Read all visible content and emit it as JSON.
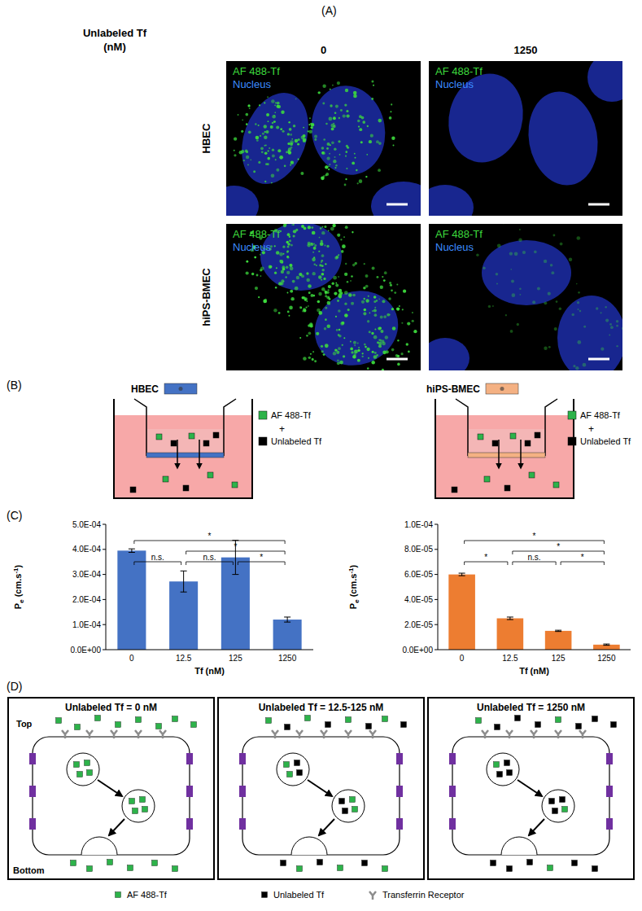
{
  "panel_a": {
    "label": "(A)",
    "header": [
      "Unlabeled Tf",
      "(nM)"
    ],
    "columns": [
      "0",
      "1250"
    ],
    "rows": [
      "HBEC",
      "hiPS-BMEC"
    ],
    "channels": [
      {
        "name": "AF 488-Tf",
        "color": "#3ddc3d"
      },
      {
        "name": "Nucleus",
        "color": "#3c8cff"
      }
    ]
  },
  "panel_b": {
    "label": "(B)",
    "setups": [
      {
        "cell": "HBEC",
        "color": "#4472c4"
      },
      {
        "cell": "hiPS-BMEC",
        "color": "#f4b183"
      }
    ],
    "legend": [
      {
        "name": "AF 488-Tf",
        "color": "#2db34a"
      },
      {
        "name": "Unlabeled Tf",
        "color": "#000000"
      }
    ],
    "plus": "+"
  },
  "panel_c_label": "(C)",
  "chart_data": [
    {
      "type": "bar",
      "categories": [
        "0",
        "12.5",
        "125",
        "1250"
      ],
      "values": [
        0.000395,
        0.000272,
        0.000368,
        0.00012
      ],
      "errors": [
        7e-06,
        4.2e-05,
        6.8e-05,
        1e-05
      ],
      "color": "#4472c4",
      "ylim": [
        0,
        0.0005
      ],
      "yticks": [
        {
          "value": 0,
          "label": "0.0E+00"
        },
        {
          "value": 0.0001,
          "label": "1.0E-04"
        },
        {
          "value": 0.0002,
          "label": "2.0E-04"
        },
        {
          "value": 0.0003,
          "label": "3.0E-04"
        },
        {
          "value": 0.0004,
          "label": "4.0E-04"
        },
        {
          "value": 0.0005,
          "label": "5.0E-04"
        }
      ],
      "x_label": "Tf (nM)",
      "y_label": [
        {
          "text": "P"
        },
        {
          "text": "e",
          "position": "sub"
        },
        {
          "text": " (cm.s"
        },
        {
          "text": "-1",
          "position": "sup"
        },
        {
          "text": ")"
        }
      ],
      "significance": [
        {
          "between": [
            "12.5",
            "125"
          ],
          "label": "n.s."
        },
        {
          "between": [
            "125",
            "1250"
          ],
          "label": "*"
        },
        {
          "between": [
            "0",
            "12.5"
          ],
          "label": "n.s."
        },
        {
          "between": [
            "12.5",
            "1250"
          ],
          "label": "*"
        },
        {
          "between": [
            "0",
            "1250"
          ],
          "label": "*"
        }
      ]
    },
    {
      "type": "bar",
      "categories": [
        "0",
        "12.5",
        "125",
        "1250"
      ],
      "values": [
        6e-05,
        2.5e-05,
        1.5e-05,
        4e-06
      ],
      "errors": [
        1e-06,
        1e-06,
        5e-07,
        5e-07
      ],
      "color": "#ed7d31",
      "ylim": [
        0,
        0.0001
      ],
      "yticks": [
        {
          "value": 0,
          "label": "0.0E+00"
        },
        {
          "value": 2e-05,
          "label": "2.0E-05"
        },
        {
          "value": 4e-05,
          "label": "4.0E-05"
        },
        {
          "value": 6e-05,
          "label": "6.0E-05"
        },
        {
          "value": 8e-05,
          "label": "8.0E-05"
        },
        {
          "value": 0.0001,
          "label": "1.0E-04"
        }
      ],
      "x_label": "Tf (nM)",
      "y_label": [
        {
          "text": "P"
        },
        {
          "text": "e",
          "position": "sub"
        },
        {
          "text": " (cm.s"
        },
        {
          "text": "-1",
          "position": "sup"
        },
        {
          "text": ")"
        }
      ],
      "significance": [
        {
          "between": [
            "12.5",
            "125"
          ],
          "label": "n.s."
        },
        {
          "between": [
            "125",
            "1250"
          ],
          "label": "*"
        },
        {
          "between": [
            "0",
            "12.5"
          ],
          "label": "*"
        },
        {
          "between": [
            "12.5",
            "1250"
          ],
          "label": "*"
        },
        {
          "between": [
            "0",
            "1250"
          ],
          "label": "*"
        }
      ]
    }
  ],
  "panel_d": {
    "label": "(D)",
    "conditions": [
      "Unlabeled Tf = 0 nM",
      "Unlabeled Tf = 12.5-125 nM",
      "Unlabeled Tf = 1250 nM"
    ],
    "top": "Top",
    "bottom": "Bottom",
    "legend": [
      {
        "name": "AF 488-Tf",
        "color": "#2db34a"
      },
      {
        "name": "Unlabeled Tf",
        "color": "#000000"
      },
      {
        "name": "Transferrin Receptor",
        "color": "#8c8c8c"
      }
    ]
  }
}
